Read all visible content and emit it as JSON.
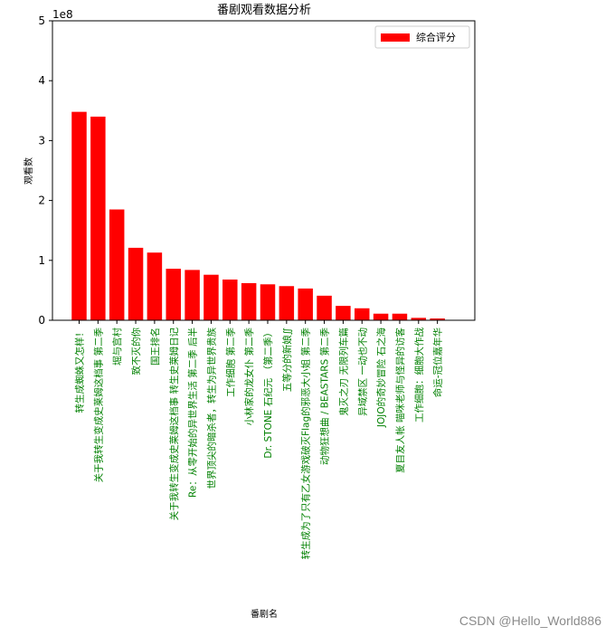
{
  "chart_data": {
    "type": "bar",
    "title": "番剧观看数据分析",
    "xlabel": "番剧名",
    "ylabel": "观看数",
    "y_offset_text": "1e8",
    "ylim": [
      0,
      5
    ],
    "y_ticks": [
      "0",
      "1",
      "2",
      "3",
      "4",
      "5"
    ],
    "legend": {
      "label": "综合评分",
      "position": "top-right",
      "color": "#ff0000"
    },
    "bar_color": "#ff0000",
    "tick_label_color": "#008000",
    "categories": [
      "转生成蜘蛛又怎样！",
      "关于我转生变成史莱姆这档事 第二季",
      "堀与宫村",
      "致不灭的你",
      "国王排名",
      "关于我转生变成史莱姆这档事 转生史莱姆日记",
      "Re：从零开始的异世界生活 第二季 后半",
      "世界顶尖的暗杀者，转生为异世界贵族",
      "工作细胞 第二季",
      "小林家的龙女仆 第二季",
      "Dr. STONE 石纪元 （第二季）",
      "五等分的新娘∬",
      "转生成为了只有乙女游戏破灭Flag的邪恶大小姐 第二季",
      "动物狂想曲 / BEASTARS 第二季",
      "鬼灭之刃 无限列车篇",
      "异域禁区 一动也不动",
      "JOJO的奇妙冒险 石之海",
      "夏目友人帐 喵咪老师与怪异的访客",
      "工作细胞：细胞大作战",
      "命运-冠位嘉年华"
    ],
    "values": [
      3.48,
      3.4,
      1.85,
      1.21,
      1.13,
      0.86,
      0.84,
      0.76,
      0.68,
      0.62,
      0.6,
      0.57,
      0.53,
      0.41,
      0.24,
      0.2,
      0.11,
      0.11,
      0.04,
      0.03
    ],
    "value_unit_multiplier": 100000000
  },
  "watermark": "CSDN @Hello_World886"
}
